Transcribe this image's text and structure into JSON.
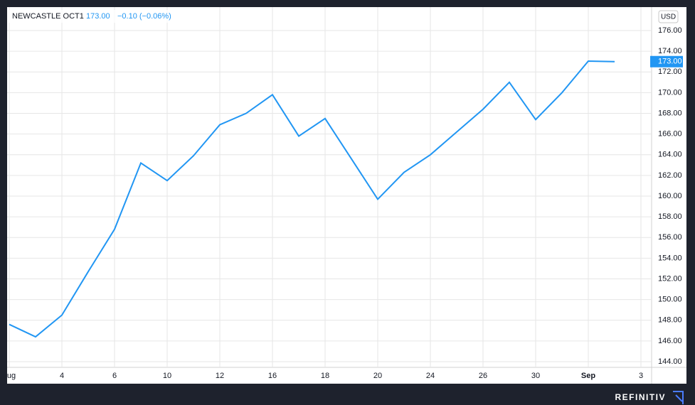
{
  "chart_data": {
    "type": "line",
    "symbol": "NEWCASTLE OCT1",
    "last_price": {
      "value": 173.0,
      "label": "173.00"
    },
    "change": "−0.10 (−0.06%)",
    "currency": "USD",
    "brand": "REFINITIV",
    "categories": [
      "ug",
      null,
      "4",
      null,
      "6",
      null,
      "10",
      null,
      "12",
      null,
      "16",
      null,
      "18",
      null,
      "20",
      null,
      "24",
      null,
      "26",
      null,
      "30",
      null,
      "Sep",
      null,
      "3"
    ],
    "series": [
      {
        "name": "NEWCASTLE OCT1",
        "color": "#2196f3",
        "values": [
          147.6,
          146.4,
          148.5,
          152.7,
          156.8,
          163.2,
          161.5,
          163.9,
          166.9,
          168.0,
          169.8,
          165.8,
          167.5,
          163.6,
          159.7,
          162.3,
          164.0,
          166.2,
          168.4,
          171.0,
          167.4,
          170.0,
          173.05,
          173.0,
          null
        ]
      }
    ],
    "ylim": [
      143.45,
      178.27
    ],
    "yticks": [
      {
        "value": 144,
        "label": "144.00"
      },
      {
        "value": 146,
        "label": "146.00"
      },
      {
        "value": 148,
        "label": "148.00"
      },
      {
        "value": 150,
        "label": "150.00"
      },
      {
        "value": 152,
        "label": "152.00"
      },
      {
        "value": 154,
        "label": "154.00"
      },
      {
        "value": 156,
        "label": "156.00"
      },
      {
        "value": 158,
        "label": "158.00"
      },
      {
        "value": 160,
        "label": "160.00"
      },
      {
        "value": 162,
        "label": "162.00"
      },
      {
        "value": 164,
        "label": "164.00"
      },
      {
        "value": 166,
        "label": "166.00"
      },
      {
        "value": 168,
        "label": "168.00"
      },
      {
        "value": 170,
        "label": "170.00"
      },
      {
        "value": 172,
        "label": "172.00"
      },
      {
        "value": 174,
        "label": "174.00"
      },
      {
        "value": 176,
        "label": "176.00"
      }
    ],
    "grid": true
  }
}
